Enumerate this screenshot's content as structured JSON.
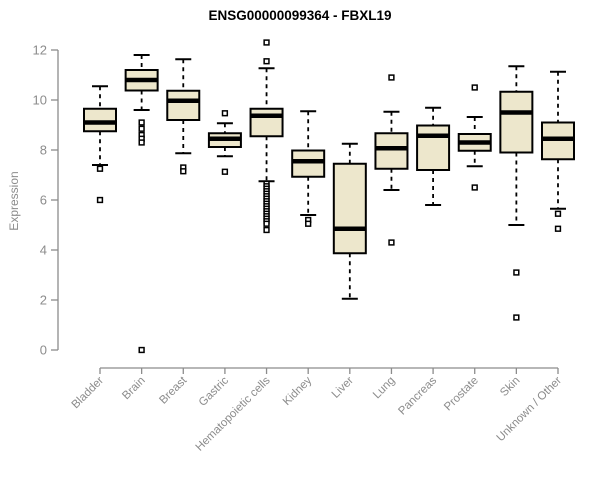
{
  "title": "ENSG00000099364 - FBXL19",
  "ylabel": "Expression",
  "colors": {
    "box_fill": "#ede7cc",
    "box_border": "#000000",
    "median": "#000000",
    "whisker": "#000000",
    "outlier_stroke": "#000000",
    "axis": "#8c8c8c",
    "tick_label": "#8c8c8c",
    "title": "#000000",
    "background": "#ffffff"
  },
  "chart_data": {
    "type": "boxplot",
    "title": "ENSG00000099364 - FBXL19",
    "xlabel": "",
    "ylabel": "Expression",
    "ylim": [
      0,
      12
    ],
    "yticks": [
      0,
      2,
      4,
      6,
      8,
      10,
      12
    ],
    "grid": false,
    "legend": false,
    "categories": [
      "Bladder",
      "Brain",
      "Breast",
      "Gastric",
      "Hematopoietic cells",
      "Kidney",
      "Liver",
      "Lung",
      "Pancreas",
      "Prostate",
      "Skin",
      "Unknown / Other"
    ],
    "series": [
      {
        "name": "Bladder",
        "whisker_low": 7.4,
        "q1": 8.75,
        "median": 9.1,
        "q3": 9.65,
        "whisker_high": 10.55,
        "outliers": [
          7.25,
          6.0
        ]
      },
      {
        "name": "Brain",
        "whisker_low": 9.6,
        "q1": 10.38,
        "median": 10.8,
        "q3": 11.2,
        "whisker_high": 11.8,
        "outliers": [
          9.1,
          8.85,
          8.6,
          8.45,
          8.3,
          0.0
        ]
      },
      {
        "name": "Breast",
        "whisker_low": 7.87,
        "q1": 9.2,
        "median": 9.97,
        "q3": 10.37,
        "whisker_high": 11.63,
        "outliers": [
          7.3,
          7.15
        ]
      },
      {
        "name": "Gastric",
        "whisker_low": 7.75,
        "q1": 8.12,
        "median": 8.45,
        "q3": 8.67,
        "whisker_high": 9.07,
        "outliers": [
          9.47,
          7.13
        ]
      },
      {
        "name": "Hematopoietic cells",
        "whisker_low": 6.75,
        "q1": 8.55,
        "median": 9.37,
        "q3": 9.65,
        "whisker_high": 11.27,
        "outliers": [
          12.3,
          11.55,
          6.65,
          6.55,
          6.45,
          6.35,
          6.25,
          6.15,
          6.05,
          5.95,
          5.85,
          5.75,
          5.65,
          5.55,
          5.45,
          5.35,
          5.25,
          5.15,
          5.05,
          4.8
        ]
      },
      {
        "name": "Kidney",
        "whisker_low": 5.4,
        "q1": 6.93,
        "median": 7.55,
        "q3": 7.98,
        "whisker_high": 9.55,
        "outliers": [
          5.2,
          5.05
        ]
      },
      {
        "name": "Liver",
        "whisker_low": 2.05,
        "q1": 3.87,
        "median": 4.85,
        "q3": 7.45,
        "whisker_high": 8.25,
        "outliers": []
      },
      {
        "name": "Lung",
        "whisker_low": 6.4,
        "q1": 7.25,
        "median": 8.07,
        "q3": 8.67,
        "whisker_high": 9.53,
        "outliers": [
          10.9,
          4.3
        ]
      },
      {
        "name": "Pancreas",
        "whisker_low": 5.8,
        "q1": 7.2,
        "median": 8.57,
        "q3": 8.98,
        "whisker_high": 9.69,
        "outliers": []
      },
      {
        "name": "Prostate",
        "whisker_low": 7.35,
        "q1": 7.97,
        "median": 8.3,
        "q3": 8.64,
        "whisker_high": 9.32,
        "outliers": [
          10.5,
          6.5
        ]
      },
      {
        "name": "Skin",
        "whisker_low": 5.0,
        "q1": 7.9,
        "median": 9.5,
        "q3": 10.33,
        "whisker_high": 11.35,
        "outliers": [
          3.1,
          1.3
        ]
      },
      {
        "name": "Unknown / Other",
        "whisker_low": 5.65,
        "q1": 7.63,
        "median": 8.45,
        "q3": 9.1,
        "whisker_high": 11.13,
        "outliers": [
          5.45,
          4.85
        ]
      }
    ]
  }
}
